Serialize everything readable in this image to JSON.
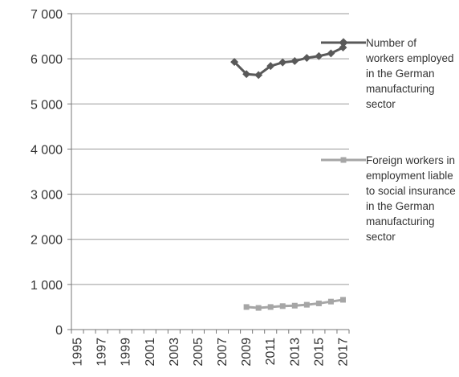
{
  "chart_data": {
    "type": "line",
    "title": "",
    "xlabel": "",
    "ylabel": "",
    "x": [
      1995,
      1996,
      1997,
      1998,
      1999,
      2000,
      2001,
      2002,
      2003,
      2004,
      2005,
      2006,
      2007,
      2008,
      2009,
      2010,
      2011,
      2012,
      2013,
      2014,
      2015,
      2016,
      2017
    ],
    "xticks": [
      "1995",
      "1997",
      "1999",
      "2001",
      "2003",
      "2005",
      "2007",
      "2009",
      "2011",
      "2013",
      "2015",
      "2017"
    ],
    "ylim": [
      0,
      7000
    ],
    "yticks": [
      0,
      1000,
      2000,
      3000,
      4000,
      5000,
      6000,
      7000
    ],
    "ytick_labels": [
      "0",
      "1 000",
      "2 000",
      "3 000",
      "4 000",
      "5 000",
      "6 000",
      "7 000"
    ],
    "grid": "horizontal",
    "legend_position": "right",
    "series": [
      {
        "name": "Number of workers employed in the German manufacturing sector",
        "color": "#595959",
        "marker": "diamond",
        "x": [
          2008,
          2009,
          2010,
          2011,
          2012,
          2013,
          2014,
          2015,
          2016,
          2017
        ],
        "values": [
          5930,
          5660,
          5640,
          5840,
          5920,
          5950,
          6020,
          6060,
          6120,
          6250
        ]
      },
      {
        "name": "Foreign workers in employment liable to social insurance in the German manufacturing sector",
        "color": "#a6a6a6",
        "marker": "square",
        "x": [
          2009,
          2010,
          2011,
          2012,
          2013,
          2014,
          2015,
          2016,
          2017
        ],
        "values": [
          500,
          480,
          500,
          520,
          530,
          550,
          580,
          620,
          660
        ]
      }
    ]
  }
}
